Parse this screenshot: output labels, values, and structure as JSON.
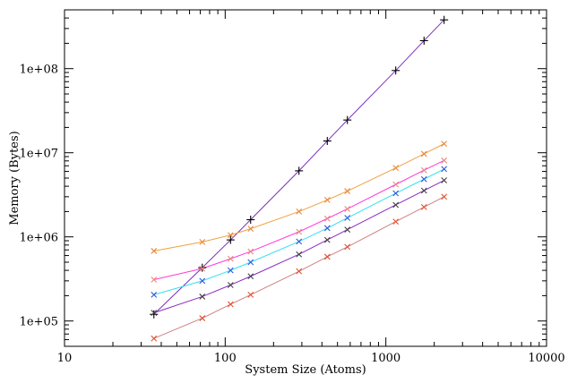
{
  "chart_data": {
    "type": "line",
    "xlabel": "System Size (Atoms)",
    "ylabel": "Memory (Bytes)",
    "xscale": "log",
    "yscale": "log",
    "xlim": [
      10,
      10000
    ],
    "ylim": [
      50000,
      500000000
    ],
    "x_ticks": [
      {
        "value": 10,
        "label": "10"
      },
      {
        "value": 100,
        "label": "100"
      },
      {
        "value": 1000,
        "label": "1000"
      },
      {
        "value": 10000,
        "label": "10000"
      }
    ],
    "y_ticks": [
      {
        "value": 100000,
        "label": "1e+05"
      },
      {
        "value": 1000000,
        "label": "1e+06"
      },
      {
        "value": 10000000,
        "label": "1e+07"
      },
      {
        "value": 100000000,
        "label": "1e+08"
      }
    ],
    "grid": false,
    "series": [
      {
        "color": "#7b2fbf",
        "marker": "plus",
        "marker_color": "#000000",
        "points": [
          [
            36,
            120000
          ],
          [
            72,
            430000
          ],
          [
            108,
            920000
          ],
          [
            144,
            1600000
          ],
          [
            288,
            6100000
          ],
          [
            432,
            13800000
          ],
          [
            576,
            24500000
          ],
          [
            1152,
            95000000
          ],
          [
            1728,
            215000000
          ],
          [
            2304,
            380000000
          ]
        ]
      },
      {
        "color": "#f0a040",
        "marker": "x",
        "marker_color": "#e8873a",
        "points": [
          [
            36,
            680000
          ],
          [
            72,
            870000
          ],
          [
            108,
            1050000
          ],
          [
            144,
            1250000
          ],
          [
            288,
            2000000
          ],
          [
            432,
            2750000
          ],
          [
            576,
            3500000
          ],
          [
            1152,
            6600000
          ],
          [
            1728,
            9700000
          ],
          [
            2304,
            12800000
          ]
        ]
      },
      {
        "color": "#ff3ad8",
        "marker": "x",
        "marker_color": "#e8877a",
        "points": [
          [
            36,
            310000
          ],
          [
            72,
            420000
          ],
          [
            108,
            550000
          ],
          [
            144,
            670000
          ],
          [
            288,
            1150000
          ],
          [
            432,
            1650000
          ],
          [
            576,
            2150000
          ],
          [
            1152,
            4200000
          ],
          [
            1728,
            6200000
          ],
          [
            2304,
            8100000
          ]
        ]
      },
      {
        "color": "#33e0f0",
        "marker": "x",
        "marker_color": "#2f55d9",
        "points": [
          [
            36,
            205000
          ],
          [
            72,
            300000
          ],
          [
            108,
            400000
          ],
          [
            144,
            500000
          ],
          [
            288,
            880000
          ],
          [
            432,
            1270000
          ],
          [
            576,
            1680000
          ],
          [
            1152,
            3300000
          ],
          [
            1728,
            4850000
          ],
          [
            2304,
            6400000
          ]
        ]
      },
      {
        "color": "#8a2bc0",
        "marker": "x",
        "marker_color": "#404040",
        "points": [
          [
            36,
            125000
          ],
          [
            72,
            195000
          ],
          [
            108,
            268000
          ],
          [
            144,
            340000
          ],
          [
            288,
            620000
          ],
          [
            432,
            920000
          ],
          [
            576,
            1220000
          ],
          [
            1152,
            2400000
          ],
          [
            1728,
            3550000
          ],
          [
            2304,
            4700000
          ]
        ]
      },
      {
        "color": "#d08080",
        "marker": "x",
        "marker_color": "#e05030",
        "points": [
          [
            36,
            62000
          ],
          [
            72,
            108000
          ],
          [
            108,
            158000
          ],
          [
            144,
            205000
          ],
          [
            288,
            390000
          ],
          [
            432,
            580000
          ],
          [
            576,
            760000
          ],
          [
            1152,
            1520000
          ],
          [
            1728,
            2260000
          ],
          [
            2304,
            3000000
          ]
        ]
      }
    ]
  }
}
